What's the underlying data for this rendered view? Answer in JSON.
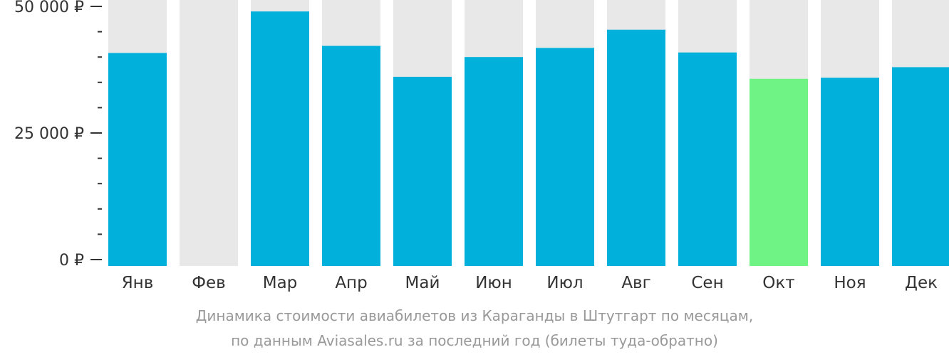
{
  "chart_data": {
    "type": "bar",
    "categories": [
      "Янв",
      "Фев",
      "Мар",
      "Апр",
      "Май",
      "Июн",
      "Июл",
      "Авг",
      "Сен",
      "Окт",
      "Ноя",
      "Дек"
    ],
    "values": [
      40800,
      null,
      49000,
      42200,
      36100,
      40000,
      41800,
      45400,
      40900,
      35700,
      35900,
      38000
    ],
    "highlight_index": 9,
    "ylim": [
      0,
      52000
    ],
    "yticks": [
      {
        "value": 0,
        "label": "0 ₽"
      },
      {
        "value": 25000,
        "label": "25 000 ₽"
      },
      {
        "value": 50000,
        "label": "50 000 ₽"
      }
    ],
    "yminor_step": 5000,
    "grid": false,
    "colors": {
      "bar": "#02b0dc",
      "highlight": "#6ef384",
      "background_column": "#e8e8e8",
      "axis": "#333333",
      "caption": "#999999"
    }
  },
  "caption": {
    "line1": "Динамика стоимости авиабилетов из Караганды в Штутгарт по месяцам,",
    "line2": "по данным Aviasales.ru за последний год (билеты туда-обратно)"
  }
}
